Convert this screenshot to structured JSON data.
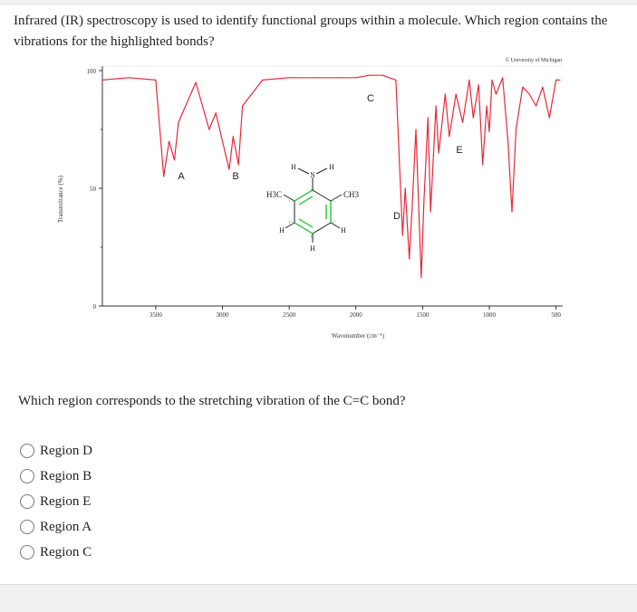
{
  "question": {
    "text": "Infrared (IR) spectroscopy is used to identify functional groups within a molecule. Which region contains the vibrations for the highlighted bonds?"
  },
  "figure": {
    "copyright": "© University of Michigan",
    "y_axis_label": "Transmittance (%)",
    "x_axis_label": "Wavenumber (cm⁻¹)",
    "y_ticks": [
      "100",
      "50",
      "0"
    ],
    "x_ticks": [
      "3500",
      "3000",
      "2500",
      "2000",
      "1500",
      "1000",
      "500"
    ],
    "region_labels": [
      "A",
      "B",
      "C",
      "D",
      "E"
    ],
    "molecule": {
      "n_label": "N",
      "h_labels": [
        "H",
        "H",
        "H",
        "H",
        "H"
      ],
      "c_labels": [
        "C",
        "C",
        "C",
        "C",
        "C",
        "C"
      ],
      "left_group": "H3C",
      "right_group": "CH3"
    },
    "colors": {
      "spectrum": "#e8283a",
      "highlight_bond": "#3dc94a",
      "axes": "#333333"
    }
  },
  "chart_data": {
    "type": "line",
    "title": "",
    "xlabel": "Wavenumber (cm⁻¹)",
    "ylabel": "Transmittance (%)",
    "xlim": [
      3900,
      450
    ],
    "ylim": [
      0,
      100
    ],
    "x": [
      3900,
      3700,
      3500,
      3440,
      3400,
      3360,
      3330,
      3200,
      3100,
      3050,
      3000,
      2950,
      2920,
      2880,
      2850,
      2700,
      2500,
      2300,
      2100,
      2000,
      1900,
      1800,
      1700,
      1650,
      1630,
      1600,
      1580,
      1550,
      1510,
      1490,
      1460,
      1440,
      1400,
      1380,
      1330,
      1300,
      1250,
      1200,
      1150,
      1120,
      1080,
      1050,
      1020,
      1000,
      980,
      950,
      900,
      860,
      830,
      800,
      750,
      700,
      650,
      600,
      550,
      500,
      470
    ],
    "y": [
      96,
      97,
      96,
      55,
      70,
      62,
      78,
      95,
      75,
      82,
      70,
      58,
      72,
      60,
      85,
      96,
      97,
      97,
      97,
      97,
      98,
      98,
      96,
      30,
      50,
      20,
      40,
      75,
      12,
      45,
      80,
      40,
      85,
      65,
      90,
      72,
      90,
      78,
      96,
      80,
      94,
      60,
      85,
      74,
      96,
      90,
      97,
      70,
      40,
      75,
      93,
      90,
      85,
      93,
      80,
      96,
      96
    ]
  },
  "sub_question": "Which region corresponds to the stretching vibration of the C=C bond?",
  "options": [
    {
      "label": "Region D"
    },
    {
      "label": "Region B"
    },
    {
      "label": "Region E"
    },
    {
      "label": "Region A"
    },
    {
      "label": "Region C"
    }
  ]
}
